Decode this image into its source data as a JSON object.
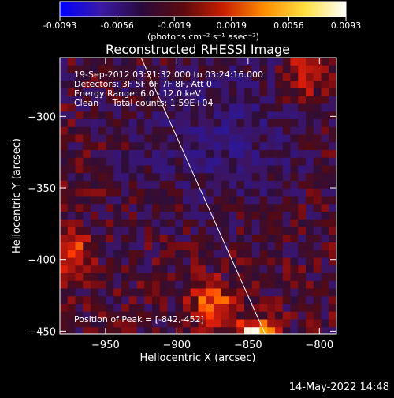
{
  "colorbar": {
    "ticks": [
      "-0.0093",
      "-0.0056",
      "-0.0019",
      "0.0019",
      "0.0056",
      "0.0093"
    ],
    "unit_label": "(photons cm⁻² s⁻¹ asec⁻²)",
    "range": [
      -0.0093,
      0.0093
    ],
    "colormap": [
      "#0000ff",
      "#3b1aa8",
      "#2a0a3c",
      "#5a0a10",
      "#c81e00",
      "#ff8c00",
      "#ffe040",
      "#ffffff"
    ]
  },
  "chart_data": {
    "type": "heatmap",
    "title": "Reconstructed RHESSI Image",
    "xlabel": "Heliocentric X (arcsec)",
    "ylabel": "Heliocentric Y (arcsec)",
    "xlim": [
      -982,
      -788
    ],
    "ylim": [
      -452,
      -259
    ],
    "x_ticks": [
      -950,
      -900,
      -850,
      -800
    ],
    "y_ticks": [
      -300,
      -350,
      -400,
      -450
    ],
    "x_tick_labels": [
      "−950",
      "−900",
      "−850",
      "−800"
    ],
    "y_tick_labels": [
      "−300",
      "−350",
      "−400",
      "−450"
    ],
    "annotations": [
      "19-Sep-2012 03:21:32.000 to 03:24:16.000",
      "Detectors: 3F 5F 6F 7F 8F, Att 0",
      "Energy Range: 6.0 - 12.0 keV",
      "Clean     Total counts: 1.59E+04"
    ],
    "peak_label": "Position of Peak = [-842,-452]",
    "peak": [
      -842,
      -452
    ],
    "limb_line": [
      [
        -925,
        -259
      ],
      [
        -838,
        -452
      ]
    ],
    "hot_regions": [
      {
        "x": -842,
        "y": -452,
        "level": 1.0
      },
      {
        "x": -808,
        "y": -270,
        "level": 0.55
      },
      {
        "x": -875,
        "y": -430,
        "level": 0.6
      },
      {
        "x": -975,
        "y": -395,
        "level": 0.5
      }
    ]
  },
  "timestamp": "14-May-2022 14:48"
}
